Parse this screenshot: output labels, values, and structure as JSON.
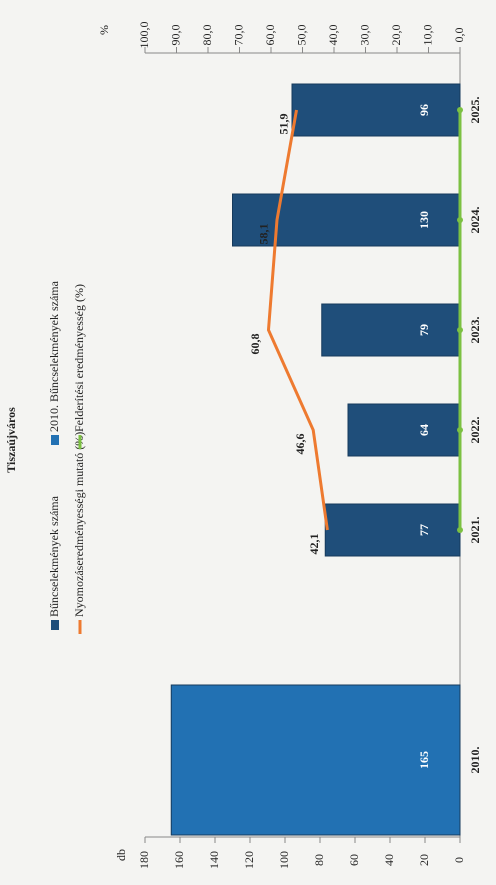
{
  "chart_data": {
    "type": "bar",
    "title": "Tiszaújváros",
    "y_label": "db",
    "y2_label": "%",
    "categories": [
      "2010.",
      "2021.",
      "2022.",
      "2023.",
      "2024.",
      "2025."
    ],
    "series": [
      {
        "name": "Bűncselekmények száma",
        "type": "bar",
        "color": "#1f4e7a",
        "values": [
          null,
          77,
          64,
          79,
          130,
          96
        ]
      },
      {
        "name": "2010. Bűncselekmények száma",
        "type": "bar",
        "color": "#2271b3",
        "values": [
          165,
          null,
          null,
          null,
          null,
          null
        ]
      },
      {
        "name": "Nyomozáseredményességi mutató (%)",
        "type": "line",
        "axis": "y2",
        "color": "#ee7a30",
        "values": [
          null,
          42.1,
          46.6,
          60.8,
          58.1,
          51.9
        ],
        "value_labels": [
          null,
          "42,1",
          "46,6",
          "60,8",
          "58,1",
          "51,9"
        ]
      },
      {
        "name": "Felderítési eredményesség (%)",
        "type": "line",
        "axis": "y2",
        "color": "#7cc142",
        "values": [
          null,
          0,
          0,
          0,
          0,
          0
        ]
      }
    ],
    "ylim": [
      0,
      180
    ],
    "yticks": [
      0,
      20,
      40,
      60,
      80,
      100,
      120,
      140,
      160,
      180
    ],
    "y2lim": [
      0,
      100
    ],
    "y2ticks": [
      {
        "value": 0,
        "label": "0,0"
      },
      {
        "value": 10,
        "label": "10,0"
      },
      {
        "value": 20,
        "label": "20,0"
      },
      {
        "value": 30,
        "label": "30,0"
      },
      {
        "value": 40,
        "label": "40,0"
      },
      {
        "value": 50,
        "label": "50,0"
      },
      {
        "value": 60,
        "label": "60,0"
      },
      {
        "value": 70,
        "label": "70,0"
      },
      {
        "value": 80,
        "label": "80,0"
      },
      {
        "value": 90,
        "label": "90,0"
      },
      {
        "value": 100,
        "label": "100,0"
      }
    ],
    "legend": "top"
  }
}
